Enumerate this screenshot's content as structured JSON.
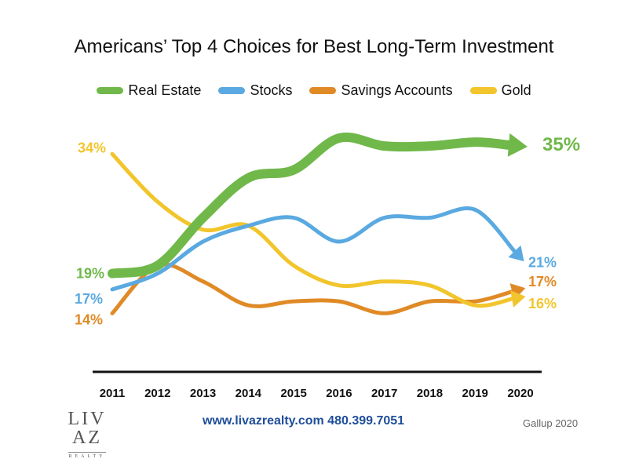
{
  "chart_data": {
    "type": "line",
    "title": "Americans’ Top 4 Choices for Best Long-Term Investment",
    "categories": [
      "2011",
      "2012",
      "2013",
      "2014",
      "2015",
      "2016",
      "2017",
      "2018",
      "2019",
      "2020"
    ],
    "ylim": [
      10,
      36
    ],
    "grid": false,
    "legend_position": "top",
    "series": [
      {
        "name": "Real Estate",
        "color": "#70b84a",
        "values": [
          19,
          20,
          26,
          31,
          32,
          36,
          35,
          35,
          35.5,
          35
        ],
        "start_label": "19%",
        "end_label": "35%"
      },
      {
        "name": "Stocks",
        "color": "#5aa9e0",
        "values": [
          17,
          19,
          23,
          25,
          26,
          23,
          26,
          26,
          27,
          21
        ],
        "start_label": "17%",
        "end_label": "21%"
      },
      {
        "name": "Savings Accounts",
        "color": "#e08a26",
        "values": [
          14,
          20,
          18,
          15,
          15.5,
          15.5,
          14,
          15.5,
          15.5,
          17
        ],
        "start_label": "14%",
        "end_label": "17%"
      },
      {
        "name": "Gold",
        "color": "#f2c52c",
        "values": [
          34,
          28,
          24.5,
          25,
          20,
          17.5,
          18,
          17.5,
          15,
          16
        ],
        "start_label": "34%",
        "end_label": "16%"
      }
    ]
  },
  "footer": {
    "website": "www.livazrealty.com  480.399.7051",
    "source": "Gallup 2020",
    "logo_main": "LIV AZ",
    "logo_sub": "REALTY"
  }
}
